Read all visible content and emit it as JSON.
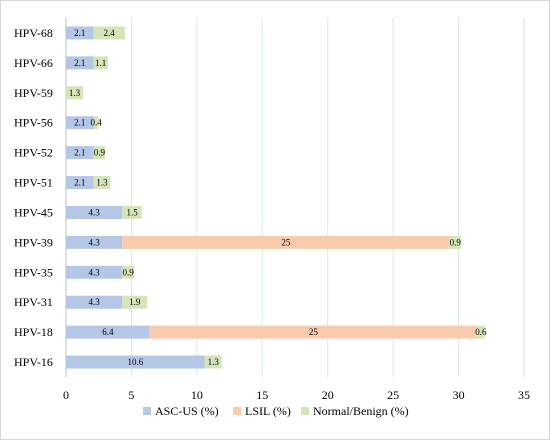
{
  "chart_data": {
    "type": "bar",
    "orientation": "horizontal",
    "stacked": true,
    "categories": [
      "HPV-68",
      "HPV-66",
      "HPV-59",
      "HPV-56",
      "HPV-52",
      "HPV-51",
      "HPV-45",
      "HPV-39",
      "HPV-35",
      "HPV-31",
      "HPV-18",
      "HPV-16"
    ],
    "series": [
      {
        "name": "ASC-US (%)",
        "color": "#b4c7e7",
        "values": [
          2.1,
          2.1,
          null,
          2.1,
          2.1,
          2.1,
          4.3,
          4.3,
          4.3,
          4.3,
          6.4,
          10.6
        ],
        "labels": [
          "2.1",
          "2.1",
          "",
          "2.1",
          "2.1",
          "2.1",
          "4.3",
          "4.3",
          "4.3",
          "4.3",
          "6.4",
          "10.6"
        ]
      },
      {
        "name": "LSIL (%)",
        "color": "#f8cbad",
        "values": [
          null,
          null,
          null,
          null,
          null,
          null,
          null,
          25,
          null,
          null,
          25,
          null
        ],
        "labels": [
          "",
          "",
          "",
          "",
          "",
          "",
          "",
          "25",
          "",
          "",
          "25",
          ""
        ]
      },
      {
        "name": "Normal/Benign (%)",
        "color": "#d5e5b9",
        "values": [
          2.4,
          1.1,
          1.3,
          0.4,
          0.9,
          1.3,
          1.5,
          0.9,
          0.9,
          1.9,
          0.6,
          1.3
        ],
        "labels": [
          "2.4",
          "1.1",
          "1.3",
          "0.4",
          "0.9",
          "1.3",
          "1.5",
          "0.9",
          "0.9",
          "1.9",
          "0.6",
          "1.3"
        ]
      }
    ],
    "title": "",
    "xlabel": "",
    "ylabel": "",
    "xlim": [
      0,
      35
    ],
    "x_ticks": [
      "0",
      "5",
      "10",
      "15",
      "20",
      "25",
      "30",
      "35"
    ],
    "grid": "vertical",
    "legend_position": "bottom"
  }
}
